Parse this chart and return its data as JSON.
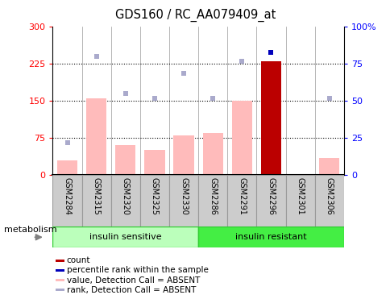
{
  "title": "GDS160 / RC_AA079409_at",
  "samples": [
    "GSM2284",
    "GSM2315",
    "GSM2320",
    "GSM2325",
    "GSM2330",
    "GSM2286",
    "GSM2291",
    "GSM2296",
    "GSM2301",
    "GSM2306"
  ],
  "bar_values": [
    30,
    155,
    60,
    50,
    80,
    85,
    150,
    230,
    0,
    35
  ],
  "bar_colors": [
    "#ffbbbb",
    "#ffbbbb",
    "#ffbbbb",
    "#ffbbbb",
    "#ffbbbb",
    "#ffbbbb",
    "#ffbbbb",
    "#bb0000",
    "#ffbbbb",
    "#ffbbbb"
  ],
  "rank_values": [
    65,
    240,
    165,
    155,
    205,
    155,
    230,
    247,
    null,
    155
  ],
  "rank_colors": [
    "#aaaacc",
    "#aaaacc",
    "#aaaacc",
    "#aaaacc",
    "#aaaacc",
    "#aaaacc",
    "#aaaacc",
    "#0000bb",
    "#aaaacc",
    "#aaaacc"
  ],
  "left_ylim": [
    0,
    300
  ],
  "left_yticks": [
    0,
    75,
    150,
    225,
    300
  ],
  "right_ylim": [
    0,
    100
  ],
  "right_yticks": [
    0,
    25,
    50,
    75,
    100
  ],
  "right_yticklabels": [
    "0",
    "25",
    "50",
    "75",
    "100%"
  ],
  "hlines": [
    75,
    150,
    225
  ],
  "legend_items": [
    {
      "label": "count",
      "color": "#bb0000"
    },
    {
      "label": "percentile rank within the sample",
      "color": "#0000bb"
    },
    {
      "label": "value, Detection Call = ABSENT",
      "color": "#ffbbbb"
    },
    {
      "label": "rank, Detection Call = ABSENT",
      "color": "#aaaacc"
    }
  ],
  "group1_label": "insulin sensitive",
  "group2_label": "insulin resistant",
  "group1_color": "#bbffbb",
  "group2_color": "#44ee44",
  "group_border_color": "#33cc33",
  "label_bg_color": "#cccccc",
  "label_border_color": "#999999",
  "metabolism_label": "metabolism",
  "bg_color": "#ffffff"
}
